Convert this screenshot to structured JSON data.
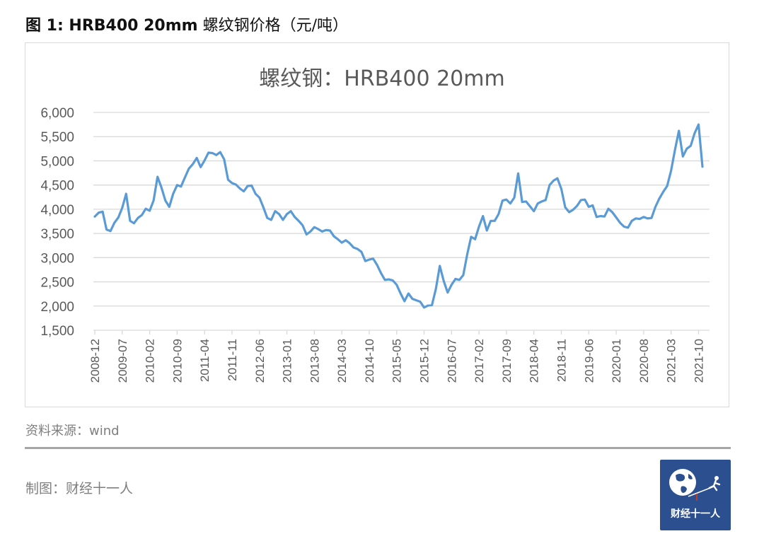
{
  "figure": {
    "label": "图 1: HRB400 20mm",
    "title_suffix": " 螺纹钢价格（元/吨）"
  },
  "source": "资料来源：wind",
  "maker": "制图：财经十一人",
  "logo": {
    "text": "财经十一人",
    "icon": "globe-runner-logo-icon",
    "bg_color": "#2b4f8f"
  },
  "colors": {
    "line": "#5b9bd5",
    "grid": "#d9d9d9",
    "axis_text": "#595959"
  },
  "chart_data": {
    "type": "line",
    "title": "螺纹钢：HRB400  20mm",
    "xlabel": "",
    "ylabel": "",
    "ylim": [
      1500,
      6000
    ],
    "yticks": [
      1500,
      2000,
      2500,
      3000,
      3500,
      4000,
      4500,
      5000,
      5500,
      6000
    ],
    "ytick_labels": [
      "1,500",
      "2,000",
      "2,500",
      "3,000",
      "3,500",
      "4,000",
      "4,500",
      "5,000",
      "5,500",
      "6,000"
    ],
    "xtick_labels": [
      "2008-12",
      "2009-07",
      "2010-02",
      "2010-09",
      "2011-04",
      "2011-11",
      "2012-06",
      "2013-01",
      "2013-08",
      "2014-03",
      "2014-10",
      "2015-05",
      "2015-12",
      "2016-07",
      "2017-02",
      "2017-09",
      "2018-04",
      "2018-11",
      "2019-06",
      "2020-01",
      "2020-08",
      "2021-03",
      "2021-10"
    ],
    "grid": true,
    "legend": "none",
    "x_start": "2008-12",
    "x_step": "1 month",
    "series": [
      {
        "name": "HRB400 20mm",
        "values": [
          3850,
          3930,
          3950,
          3580,
          3550,
          3720,
          3830,
          4030,
          4320,
          3760,
          3710,
          3820,
          3880,
          4010,
          3970,
          4180,
          4670,
          4450,
          4180,
          4050,
          4320,
          4500,
          4470,
          4660,
          4840,
          4930,
          5060,
          4870,
          5010,
          5170,
          5160,
          5120,
          5180,
          5030,
          4610,
          4540,
          4510,
          4430,
          4370,
          4480,
          4490,
          4320,
          4240,
          4040,
          3820,
          3780,
          3960,
          3900,
          3780,
          3900,
          3960,
          3840,
          3760,
          3670,
          3480,
          3540,
          3630,
          3590,
          3540,
          3570,
          3560,
          3440,
          3380,
          3310,
          3360,
          3300,
          3210,
          3180,
          3120,
          2930,
          2960,
          2980,
          2850,
          2680,
          2540,
          2550,
          2530,
          2440,
          2260,
          2100,
          2260,
          2150,
          2120,
          2090,
          1970,
          2010,
          2020,
          2350,
          2830,
          2520,
          2280,
          2440,
          2560,
          2540,
          2640,
          3070,
          3430,
          3380,
          3640,
          3860,
          3560,
          3760,
          3760,
          3900,
          4180,
          4200,
          4120,
          4240,
          4740,
          4150,
          4160,
          4060,
          3960,
          4120,
          4160,
          4190,
          4500,
          4590,
          4640,
          4420,
          4040,
          3940,
          3990,
          4070,
          4190,
          4200,
          4050,
          4080,
          3840,
          3860,
          3850,
          4010,
          3940,
          3830,
          3720,
          3640,
          3620,
          3760,
          3810,
          3800,
          3840,
          3810,
          3820,
          4050,
          4220,
          4360,
          4480,
          4800,
          5230,
          5620,
          5090,
          5250,
          5310,
          5570,
          5750,
          4880
        ]
      }
    ]
  }
}
